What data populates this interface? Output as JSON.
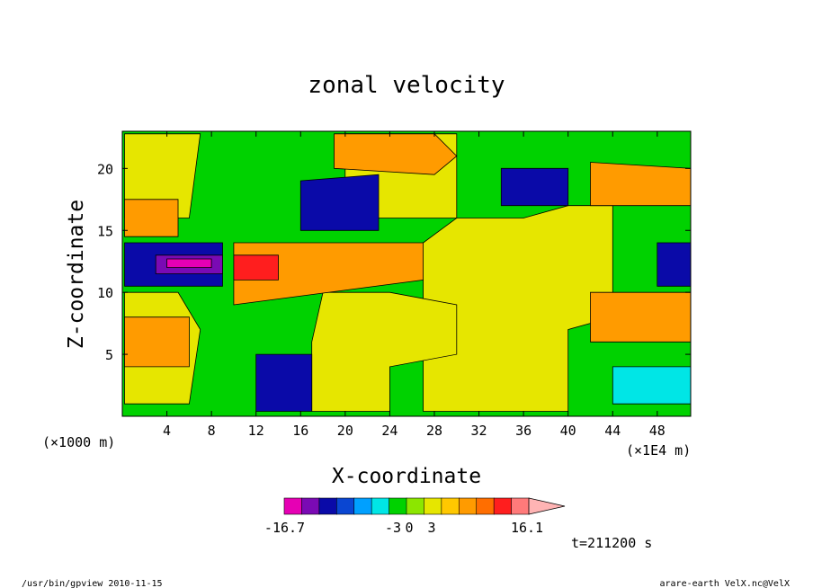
{
  "chart_data": {
    "type": "heatmap",
    "title": "zonal velocity",
    "xlabel": "X-coordinate",
    "ylabel": "Z-coordinate",
    "x_unit_label": "(×1E4 m)",
    "z_unit_label": "(×1000 m)",
    "x_ticks": [
      4,
      8,
      12,
      16,
      20,
      24,
      28,
      32,
      36,
      40,
      44,
      48
    ],
    "z_ticks": [
      5,
      10,
      15,
      20
    ],
    "xlim": [
      0,
      51
    ],
    "zlim": [
      0,
      23
    ],
    "colorbar": {
      "labels": [
        "-16.7",
        "-3",
        "0",
        "3",
        "16.1"
      ],
      "min": -16.7,
      "max": 16.1,
      "colors": [
        "#e600b4",
        "#7a0ab4",
        "#0a0aa8",
        "#0a46d2",
        "#00a0ff",
        "#00e6e6",
        "#00d200",
        "#8ce600",
        "#e6e600",
        "#ffc800",
        "#ff9b00",
        "#ff6e00",
        "#ff1e1e",
        "#ff7a7a",
        "#ffb4b4"
      ]
    },
    "regions": [
      {
        "level": "yellow",
        "points": [
          [
            27,
            0.4
          ],
          [
            40,
            0.4
          ],
          [
            40,
            7
          ],
          [
            44,
            8
          ],
          [
            44,
            17
          ],
          [
            40,
            17
          ],
          [
            36,
            16
          ],
          [
            30,
            16
          ],
          [
            27,
            14
          ]
        ]
      },
      {
        "level": "yellow",
        "points": [
          [
            17,
            0.4
          ],
          [
            24,
            0.4
          ],
          [
            24,
            4
          ],
          [
            30,
            5
          ],
          [
            30,
            9
          ],
          [
            24,
            10
          ],
          [
            18,
            10
          ],
          [
            17,
            6
          ]
        ]
      },
      {
        "level": "yellow",
        "points": [
          [
            0.2,
            1
          ],
          [
            6,
            1
          ],
          [
            7,
            7
          ],
          [
            5,
            10
          ],
          [
            0.2,
            10
          ]
        ]
      },
      {
        "level": "yellow",
        "points": [
          [
            20,
            16
          ],
          [
            30,
            16
          ],
          [
            30,
            22.8
          ],
          [
            20,
            22.8
          ]
        ]
      },
      {
        "level": "yellow",
        "points": [
          [
            0.2,
            16
          ],
          [
            6,
            16
          ],
          [
            7,
            22.8
          ],
          [
            0.2,
            22.8
          ]
        ]
      },
      {
        "level": "orange",
        "points": [
          [
            19,
            20
          ],
          [
            28,
            19.5
          ],
          [
            30,
            21
          ],
          [
            28,
            22.8
          ],
          [
            19,
            22.8
          ]
        ]
      },
      {
        "level": "orange",
        "points": [
          [
            42,
            17
          ],
          [
            51,
            17
          ],
          [
            51,
            20
          ],
          [
            42,
            20.5
          ]
        ]
      },
      {
        "level": "orange",
        "points": [
          [
            42,
            6
          ],
          [
            51,
            6
          ],
          [
            51,
            10
          ],
          [
            42,
            10
          ]
        ]
      },
      {
        "level": "orange",
        "points": [
          [
            10,
            9
          ],
          [
            27,
            11
          ],
          [
            27,
            14
          ],
          [
            10,
            14
          ]
        ]
      },
      {
        "level": "orange",
        "points": [
          [
            0.2,
            14.5
          ],
          [
            5,
            14.5
          ],
          [
            5,
            17.5
          ],
          [
            0.2,
            17.5
          ]
        ]
      },
      {
        "level": "orange",
        "points": [
          [
            0.2,
            4
          ],
          [
            6,
            4
          ],
          [
            6,
            8
          ],
          [
            0.2,
            8
          ]
        ]
      },
      {
        "level": "red",
        "points": [
          [
            10,
            11
          ],
          [
            14,
            11
          ],
          [
            14,
            13
          ],
          [
            10,
            13
          ]
        ]
      },
      {
        "level": "blue",
        "points": [
          [
            0.2,
            10.5
          ],
          [
            9,
            10.5
          ],
          [
            9,
            14
          ],
          [
            0.2,
            14
          ]
        ]
      },
      {
        "level": "blue",
        "points": [
          [
            16,
            15
          ],
          [
            23,
            15
          ],
          [
            23,
            19.5
          ],
          [
            16,
            19
          ]
        ]
      },
      {
        "level": "blue",
        "points": [
          [
            34,
            17
          ],
          [
            40,
            17
          ],
          [
            40,
            20
          ],
          [
            34,
            20
          ]
        ]
      },
      {
        "level": "blue",
        "points": [
          [
            48,
            10.5
          ],
          [
            51,
            10.5
          ],
          [
            51,
            14
          ],
          [
            48,
            14
          ]
        ]
      },
      {
        "level": "blue",
        "points": [
          [
            12,
            0.4
          ],
          [
            17,
            0.4
          ],
          [
            17,
            5
          ],
          [
            12,
            5
          ]
        ]
      },
      {
        "level": "cyan",
        "points": [
          [
            44,
            1
          ],
          [
            51,
            1
          ],
          [
            51,
            4
          ],
          [
            44,
            4
          ]
        ]
      },
      {
        "level": "purple",
        "points": [
          [
            3,
            11.5
          ],
          [
            9,
            11.5
          ],
          [
            9,
            13
          ],
          [
            3,
            13
          ]
        ]
      },
      {
        "level": "magenta",
        "points": [
          [
            4,
            12
          ],
          [
            8,
            12
          ],
          [
            8,
            12.7
          ],
          [
            4,
            12.7
          ]
        ]
      }
    ]
  },
  "page": {
    "time_label": "t=211200 s",
    "footer_left": "/usr/bin/gpview   2010-11-15",
    "footer_right": "arare-earth_VelX.nc@VelX"
  }
}
